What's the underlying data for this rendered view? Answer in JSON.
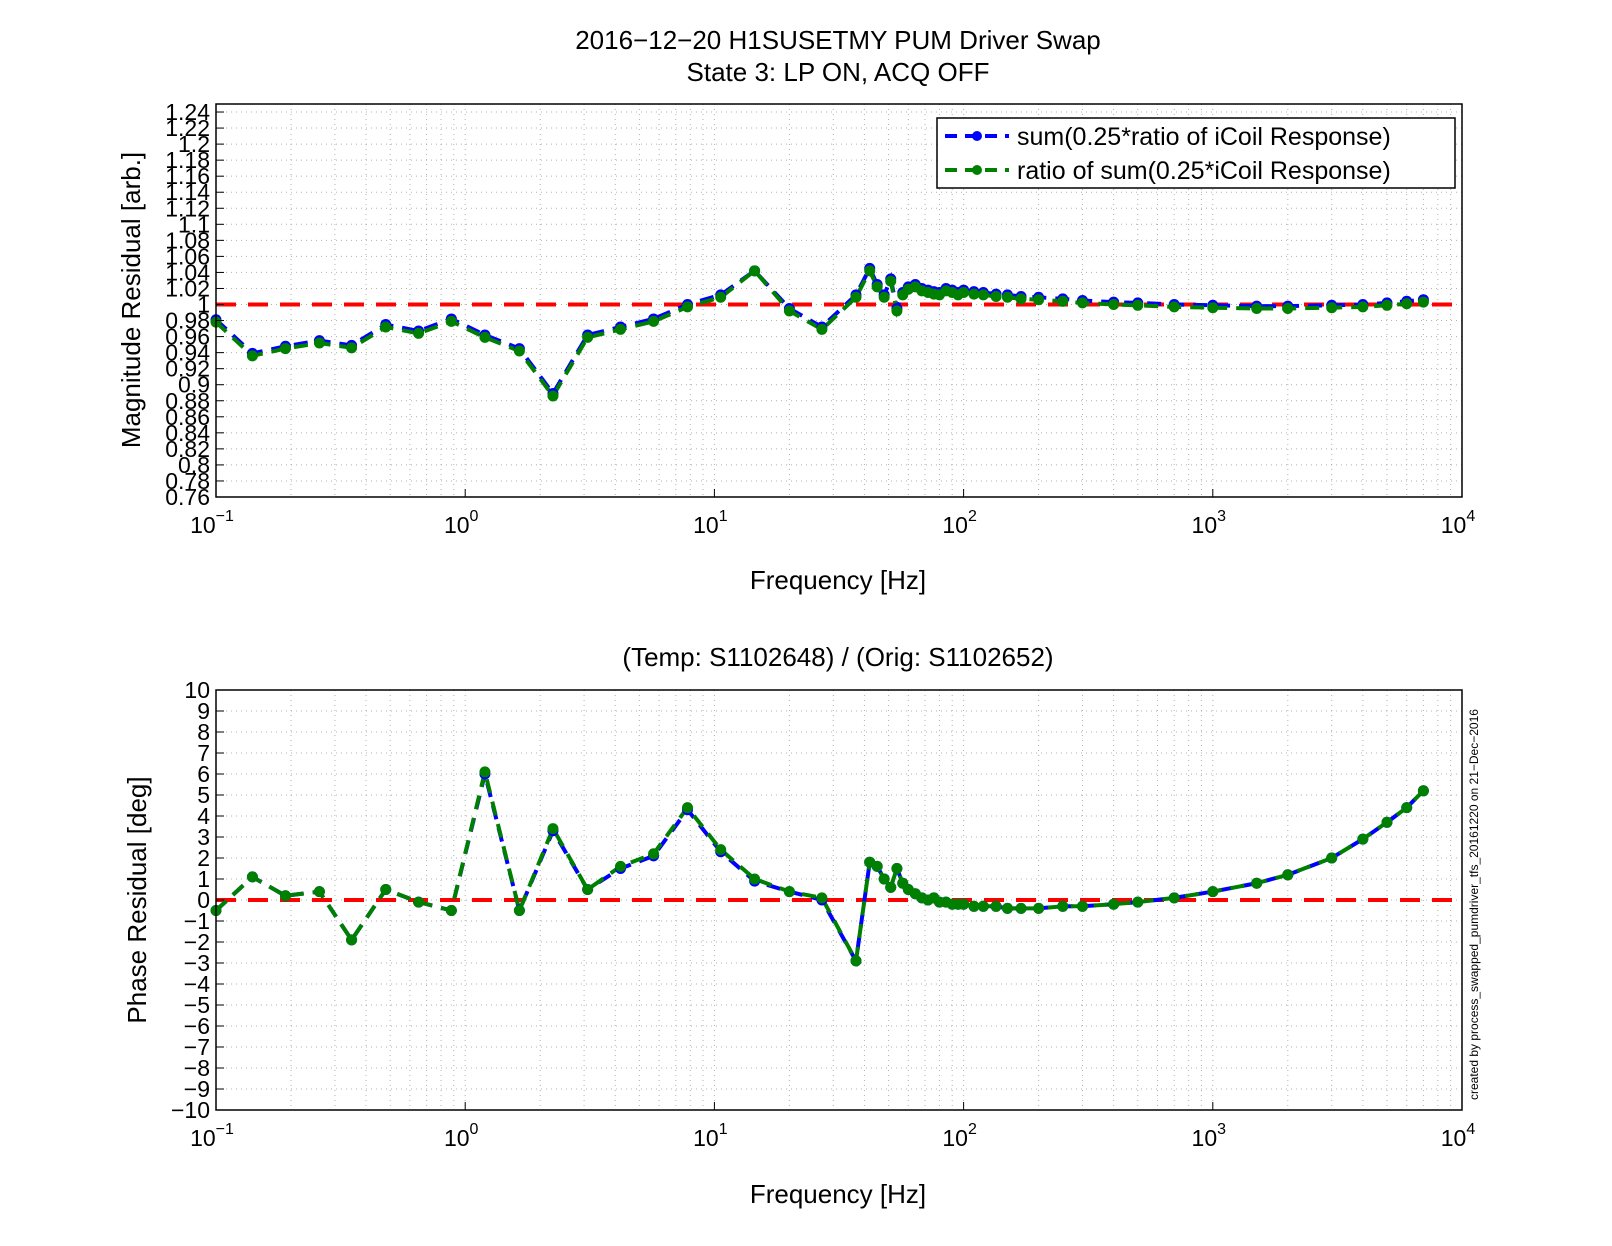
{
  "figure": {
    "title_line1": "2016−12−20 H1SUSETMY PUM Driver Swap",
    "title_line2": "State 3: LP ON, ACQ OFF",
    "credit": "created by process_swapped_pumdriver_tfs_20161220 on 21−Dec−2016"
  },
  "chart_data": [
    {
      "type": "line",
      "xscale": "log",
      "xlim": [
        0.1,
        10000
      ],
      "ylim": [
        0.76,
        1.25
      ],
      "xlabel": "Frequency [Hz]",
      "ylabel": "Magnitude Residual [arb.]",
      "xtick_labels": [
        {
          "base": "10",
          "exp": "−1"
        },
        {
          "base": "10",
          "exp": "0"
        },
        {
          "base": "10",
          "exp": "1"
        },
        {
          "base": "10",
          "exp": "2"
        },
        {
          "base": "10",
          "exp": "3"
        },
        {
          "base": "10",
          "exp": "4"
        }
      ],
      "ytick_labels": [
        "0.76",
        "0.78",
        "0.8",
        "0.82",
        "0.84",
        "0.86",
        "0.88",
        "0.9",
        "0.92",
        "0.94",
        "0.96",
        "0.98",
        "1",
        "1.02",
        "1.04",
        "1.06",
        "1.08",
        "1.1",
        "1.12",
        "1.14",
        "1.16",
        "1.18",
        "1.2",
        "1.22",
        "1.24"
      ],
      "grid": true,
      "legend_position": "top-right",
      "reference_line": {
        "y": 1,
        "color": "#ff0000",
        "style": "dashed"
      },
      "x": [
        0.1,
        0.14,
        0.19,
        0.26,
        0.35,
        0.48,
        0.65,
        0.88,
        1.2,
        1.65,
        2.25,
        3.1,
        4.2,
        5.7,
        7.8,
        10.6,
        14.5,
        20,
        27,
        37,
        42,
        45,
        48,
        51,
        54,
        57,
        60,
        64,
        68,
        72,
        76,
        80,
        85,
        90,
        95,
        100,
        110,
        120,
        135,
        150,
        170,
        200,
        250,
        300,
        400,
        500,
        700,
        1000,
        1500,
        2000,
        3000,
        4000,
        5000,
        6000,
        7000
      ],
      "series": [
        {
          "name": "sum(0.25*ratio of iCoil Response)",
          "color": "#0000ff",
          "values": [
            0.981,
            0.939,
            0.948,
            0.955,
            0.949,
            0.975,
            0.967,
            0.982,
            0.962,
            0.945,
            0.889,
            0.962,
            0.972,
            0.982,
            1.0,
            1.012,
            1.042,
            0.995,
            0.972,
            1.012,
            1.045,
            1.025,
            1.012,
            1.032,
            0.995,
            1.015,
            1.022,
            1.025,
            1.02,
            1.018,
            1.016,
            1.015,
            1.02,
            1.018,
            1.015,
            1.018,
            1.016,
            1.015,
            1.013,
            1.012,
            1.01,
            1.009,
            1.007,
            1.005,
            1.003,
            1.002,
            1.0,
            0.999,
            0.998,
            0.998,
            0.999,
            1.0,
            1.002,
            1.004,
            1.006
          ]
        },
        {
          "name": "ratio of sum(0.25*iCoil Response)",
          "color": "#008000",
          "values": [
            0.978,
            0.936,
            0.945,
            0.952,
            0.946,
            0.972,
            0.964,
            0.979,
            0.959,
            0.942,
            0.886,
            0.959,
            0.969,
            0.979,
            0.997,
            1.009,
            1.042,
            0.992,
            0.969,
            1.009,
            1.042,
            1.022,
            1.009,
            1.029,
            0.992,
            1.012,
            1.019,
            1.022,
            1.017,
            1.015,
            1.013,
            1.012,
            1.017,
            1.015,
            1.012,
            1.015,
            1.013,
            1.012,
            1.01,
            1.009,
            1.007,
            1.006,
            1.004,
            1.002,
            1.0,
            0.999,
            0.997,
            0.996,
            0.995,
            0.995,
            0.996,
            0.997,
            0.999,
            1.001,
            1.003
          ]
        }
      ]
    },
    {
      "type": "line",
      "title": "(Temp: S1102648) / (Orig: S1102652)",
      "xscale": "log",
      "xlim": [
        0.1,
        10000
      ],
      "ylim": [
        -10,
        10
      ],
      "xlabel": "Frequency [Hz]",
      "ylabel": "Phase Residual [deg]",
      "xtick_labels": [
        {
          "base": "10",
          "exp": "−1"
        },
        {
          "base": "10",
          "exp": "0"
        },
        {
          "base": "10",
          "exp": "1"
        },
        {
          "base": "10",
          "exp": "2"
        },
        {
          "base": "10",
          "exp": "3"
        },
        {
          "base": "10",
          "exp": "4"
        }
      ],
      "ytick_labels": [
        "−10",
        "−9",
        "−8",
        "−7",
        "−6",
        "−5",
        "−4",
        "−3",
        "−2",
        "−1",
        "0",
        "1",
        "2",
        "3",
        "4",
        "5",
        "6",
        "7",
        "8",
        "9",
        "10"
      ],
      "grid": true,
      "reference_line": {
        "y": 0,
        "color": "#ff0000",
        "style": "dashed"
      },
      "x": [
        0.1,
        0.14,
        0.19,
        0.26,
        0.35,
        0.48,
        0.65,
        0.88,
        1.2,
        1.65,
        2.25,
        3.1,
        4.2,
        5.7,
        7.8,
        10.6,
        14.5,
        20,
        27,
        37,
        42,
        45,
        48,
        51,
        54,
        57,
        60,
        64,
        68,
        72,
        76,
        80,
        85,
        90,
        95,
        100,
        110,
        120,
        135,
        150,
        170,
        200,
        250,
        300,
        400,
        500,
        700,
        1000,
        1500,
        2000,
        3000,
        4000,
        5000,
        6000,
        7000
      ],
      "series": [
        {
          "name": "sum(0.25*ratio of iCoil Response)",
          "color": "#0000ff",
          "values": [
            -0.5,
            1.1,
            0.2,
            0.4,
            -1.9,
            0.5,
            -0.1,
            -0.5,
            6.0,
            -0.5,
            3.3,
            0.5,
            1.5,
            2.1,
            4.3,
            2.3,
            0.9,
            0.4,
            0.0,
            -2.9,
            1.8,
            1.6,
            1.0,
            0.6,
            1.5,
            0.8,
            0.5,
            0.3,
            0.1,
            0.0,
            0.1,
            -0.1,
            -0.1,
            -0.2,
            -0.2,
            -0.2,
            -0.3,
            -0.3,
            -0.3,
            -0.4,
            -0.4,
            -0.4,
            -0.3,
            -0.3,
            -0.2,
            -0.1,
            0.1,
            0.4,
            0.8,
            1.2,
            2.0,
            2.9,
            3.7,
            4.4,
            5.2
          ]
        },
        {
          "name": "ratio of sum(0.25*iCoil Response)",
          "color": "#008000",
          "values": [
            -0.5,
            1.1,
            0.2,
            0.4,
            -1.9,
            0.5,
            -0.1,
            -0.5,
            6.1,
            -0.5,
            3.4,
            0.5,
            1.6,
            2.2,
            4.4,
            2.4,
            1.0,
            0.4,
            0.1,
            -2.9,
            1.8,
            1.6,
            1.0,
            0.6,
            1.5,
            0.8,
            0.5,
            0.3,
            0.1,
            0.0,
            0.1,
            -0.1,
            -0.1,
            -0.2,
            -0.2,
            -0.2,
            -0.3,
            -0.3,
            -0.3,
            -0.4,
            -0.4,
            -0.4,
            -0.3,
            -0.3,
            -0.2,
            -0.1,
            0.1,
            0.4,
            0.8,
            1.2,
            2.0,
            2.9,
            3.7,
            4.4,
            5.2
          ]
        }
      ]
    }
  ]
}
